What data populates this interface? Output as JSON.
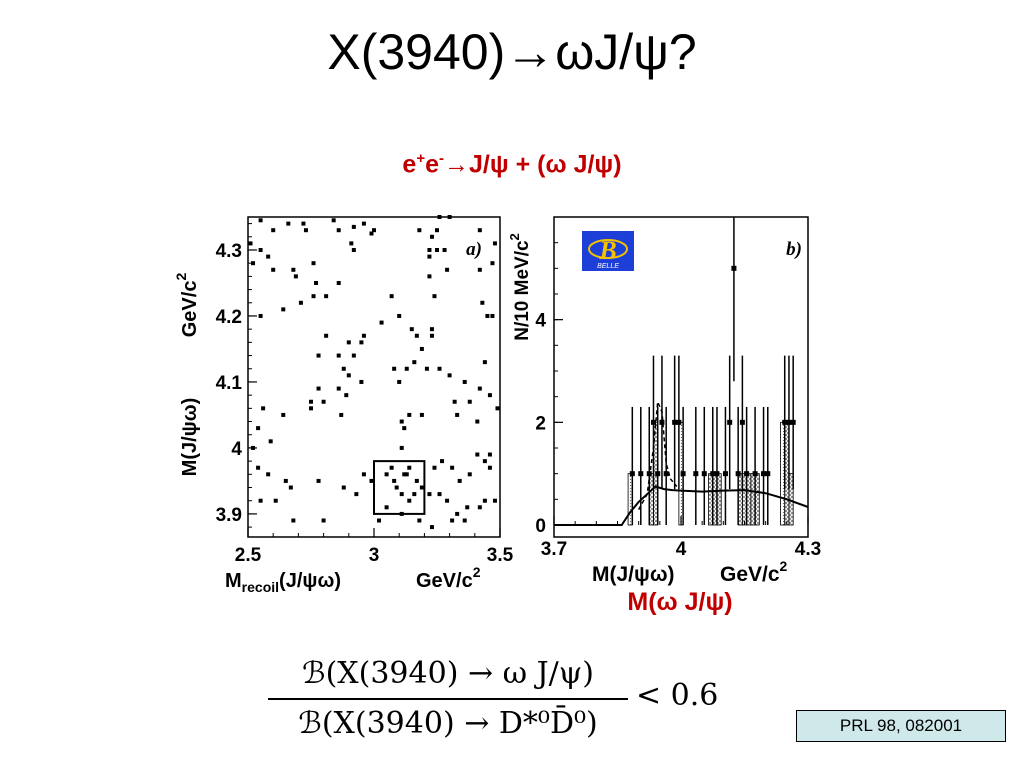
{
  "slide": {
    "title": "X(3940)→ωJ/ψ?",
    "subtitle_prefix": "e",
    "subtitle_sup1": "+",
    "subtitle_e2": "e",
    "subtitle_sup2": "-",
    "subtitle_rest": "→J/ψ  + (ω  J/ψ)",
    "bottom_label": "M(ω  J/ψ)",
    "reference": "PRL 98, 082001",
    "formula_numerator": "ℬ(X(3940) → ω J/ψ)",
    "formula_denominator": "ℬ(X(3940) → D*⁰D̄⁰)",
    "formula_rhs": "< 0.6"
  },
  "chart_data": [
    {
      "type": "scatter",
      "panel_label": "a)",
      "xlabel_main": "M",
      "xlabel_sub": "recoil",
      "xlabel_rest": "(J/ψω)",
      "xunit": "GeV/c",
      "xunit_sup": "2",
      "ylabel": "M(J/ψω)",
      "yunit": "GeV/c",
      "yunit_sup": "2",
      "xlim": [
        2.5,
        3.5
      ],
      "ylim": [
        3.865,
        4.35
      ],
      "xticks": [
        "2.5",
        "3",
        "3.5"
      ],
      "yticks": [
        "3.9",
        "4",
        "4.1",
        "4.2",
        "4.3"
      ],
      "signal_box": {
        "x": [
          3.0,
          3.2
        ],
        "y": [
          3.9,
          3.98
        ]
      },
      "points": [
        [
          2.55,
          4.345
        ],
        [
          2.55,
          4.3
        ],
        [
          2.58,
          4.29
        ],
        [
          2.6,
          4.33
        ],
        [
          2.66,
          4.34
        ],
        [
          2.72,
          4.34
        ],
        [
          2.84,
          4.345
        ],
        [
          2.92,
          4.335
        ],
        [
          2.96,
          4.34
        ],
        [
          2.99,
          4.325
        ],
        [
          2.51,
          4.31
        ],
        [
          2.52,
          4.28
        ],
        [
          2.73,
          4.33
        ],
        [
          2.86,
          4.33
        ],
        [
          3.0,
          4.33
        ],
        [
          2.6,
          4.27
        ],
        [
          2.68,
          4.27
        ],
        [
          2.76,
          4.28
        ],
        [
          2.77,
          4.25
        ],
        [
          2.81,
          4.23
        ],
        [
          2.86,
          4.25
        ],
        [
          2.92,
          4.3
        ],
        [
          2.86,
          4.14
        ],
        [
          2.9,
          4.16
        ],
        [
          2.91,
          4.31
        ],
        [
          2.55,
          4.2
        ],
        [
          2.64,
          4.21
        ],
        [
          2.69,
          4.26
        ],
        [
          2.76,
          4.23
        ],
        [
          2.71,
          4.22
        ],
        [
          2.78,
          4.14
        ],
        [
          2.81,
          4.17
        ],
        [
          2.88,
          4.12
        ],
        [
          2.92,
          4.14
        ],
        [
          2.95,
          4.16
        ],
        [
          2.96,
          4.17
        ],
        [
          3.1,
          4.2
        ],
        [
          3.03,
          4.19
        ],
        [
          3.07,
          4.23
        ],
        [
          3.15,
          4.18
        ],
        [
          3.23,
          4.18
        ],
        [
          3.26,
          4.12
        ],
        [
          3.3,
          4.11
        ],
        [
          3.32,
          4.07
        ],
        [
          3.36,
          4.1
        ],
        [
          3.42,
          4.09
        ],
        [
          3.44,
          4.13
        ],
        [
          3.45,
          4.2
        ],
        [
          3.47,
          4.2
        ],
        [
          3.49,
          4.06
        ],
        [
          3.46,
          4.08
        ],
        [
          3.38,
          4.07
        ],
        [
          3.13,
          4.12
        ],
        [
          3.08,
          4.12
        ],
        [
          3.1,
          4.1
        ],
        [
          3.14,
          4.05
        ],
        [
          3.11,
          4.04
        ],
        [
          3.12,
          4.03
        ],
        [
          3.16,
          4.13
        ],
        [
          3.17,
          4.17
        ],
        [
          3.19,
          4.15
        ],
        [
          3.23,
          4.17
        ],
        [
          3.22,
          4.26
        ],
        [
          3.24,
          4.23
        ],
        [
          3.22,
          4.29
        ],
        [
          3.25,
          4.3
        ],
        [
          3.23,
          4.32
        ],
        [
          3.28,
          4.3
        ],
        [
          3.29,
          4.27
        ],
        [
          3.25,
          4.33
        ],
        [
          3.26,
          4.35
        ],
        [
          3.3,
          4.35
        ],
        [
          3.42,
          4.27
        ],
        [
          3.43,
          4.22
        ],
        [
          3.42,
          4.33
        ],
        [
          3.48,
          4.31
        ],
        [
          3.47,
          4.28
        ],
        [
          3.22,
          4.3
        ],
        [
          3.18,
          4.33
        ],
        [
          2.75,
          4.06
        ],
        [
          2.78,
          4.09
        ],
        [
          2.86,
          4.09
        ],
        [
          2.89,
          4.08
        ],
        [
          2.87,
          4.05
        ],
        [
          2.8,
          4.07
        ],
        [
          2.75,
          4.07
        ],
        [
          2.64,
          4.05
        ],
        [
          2.56,
          4.06
        ],
        [
          2.54,
          4.03
        ],
        [
          2.59,
          4.01
        ],
        [
          2.52,
          4.0
        ],
        [
          2.54,
          3.97
        ],
        [
          2.58,
          3.96
        ],
        [
          2.55,
          3.92
        ],
        [
          2.65,
          3.95
        ],
        [
          2.67,
          3.94
        ],
        [
          2.78,
          3.95
        ],
        [
          2.8,
          3.89
        ],
        [
          2.88,
          3.94
        ],
        [
          2.93,
          3.93
        ],
        [
          2.96,
          3.96
        ],
        [
          2.99,
          3.95
        ],
        [
          3.02,
          3.89
        ],
        [
          3.05,
          3.96
        ],
        [
          3.08,
          3.95
        ],
        [
          3.09,
          3.94
        ],
        [
          3.11,
          3.93
        ],
        [
          3.13,
          3.96
        ],
        [
          3.14,
          3.97
        ],
        [
          3.16,
          3.93
        ],
        [
          3.19,
          3.94
        ],
        [
          3.22,
          3.93
        ],
        [
          3.24,
          3.97
        ],
        [
          3.27,
          3.98
        ],
        [
          3.31,
          3.97
        ],
        [
          3.29,
          3.92
        ],
        [
          3.33,
          3.9
        ],
        [
          3.36,
          3.89
        ],
        [
          3.38,
          3.96
        ],
        [
          3.41,
          3.99
        ],
        [
          3.44,
          3.98
        ],
        [
          3.46,
          3.97
        ],
        [
          3.44,
          3.92
        ],
        [
          3.48,
          3.92
        ],
        [
          3.37,
          3.91
        ],
        [
          3.31,
          3.89
        ],
        [
          3.23,
          3.88
        ],
        [
          3.05,
          3.91
        ],
        [
          3.11,
          3.9
        ],
        [
          3.18,
          3.89
        ],
        [
          3.12,
          3.96
        ],
        [
          3.14,
          3.92
        ],
        [
          3.17,
          3.95
        ],
        [
          3.07,
          3.97
        ],
        [
          3.26,
          3.93
        ],
        [
          2.61,
          3.92
        ],
        [
          2.68,
          3.89
        ],
        [
          3.42,
          3.91
        ],
        [
          3.34,
          3.95
        ],
        [
          3.41,
          4.04
        ],
        [
          3.46,
          3.99
        ],
        [
          3.21,
          4.12
        ],
        [
          3.11,
          4.0
        ],
        [
          3.19,
          4.05
        ],
        [
          3.33,
          4.05
        ],
        [
          2.9,
          4.11
        ],
        [
          2.95,
          4.1
        ]
      ]
    },
    {
      "type": "bar",
      "panel_label": "b)",
      "xlabel": "M(J/ψω)",
      "xunit": "GeV/c",
      "xunit_sup": "2",
      "ylabel": "N/10 MeV/c",
      "ylabel_sup": "2",
      "xlim": [
        3.7,
        4.3
      ],
      "ylim": [
        0,
        6
      ],
      "xticks": [
        "3.7",
        "4",
        "4.3"
      ],
      "yticks": [
        "0",
        "2",
        "4"
      ],
      "logo_text": "BELLE",
      "data_points": [
        {
          "x": 3.885,
          "y": 1,
          "err": [
            1,
            2.3
          ]
        },
        {
          "x": 3.905,
          "y": 1,
          "err": [
            1,
            2.3
          ]
        },
        {
          "x": 3.925,
          "y": 1,
          "err": [
            1,
            2.3
          ]
        },
        {
          "x": 3.935,
          "y": 2,
          "err": [
            1.3,
            3.3
          ]
        },
        {
          "x": 3.945,
          "y": 1,
          "err": [
            1,
            2.3
          ]
        },
        {
          "x": 3.955,
          "y": 2,
          "err": [
            1.3,
            3.3
          ]
        },
        {
          "x": 3.965,
          "y": 1,
          "err": [
            1,
            2.3
          ]
        },
        {
          "x": 3.985,
          "y": 2,
          "err": [
            1.3,
            3.3
          ]
        },
        {
          "x": 3.995,
          "y": 2,
          "err": [
            1.3,
            3.3
          ]
        },
        {
          "x": 4.005,
          "y": 1,
          "err": [
            1,
            2.3
          ]
        },
        {
          "x": 4.035,
          "y": 1,
          "err": [
            1,
            2.3
          ]
        },
        {
          "x": 4.055,
          "y": 1,
          "err": [
            1,
            2.3
          ]
        },
        {
          "x": 4.075,
          "y": 1,
          "err": [
            1,
            2.3
          ]
        },
        {
          "x": 4.085,
          "y": 1,
          "err": [
            1,
            2.3
          ]
        },
        {
          "x": 4.105,
          "y": 1,
          "err": [
            1,
            2.3
          ]
        },
        {
          "x": 4.115,
          "y": 2,
          "err": [
            1.3,
            3.3
          ]
        },
        {
          "x": 4.125,
          "y": 5,
          "err": [
            2.2,
            6.0
          ]
        },
        {
          "x": 4.135,
          "y": 1,
          "err": [
            1,
            2.3
          ]
        },
        {
          "x": 4.145,
          "y": 2,
          "err": [
            1.3,
            3.3
          ]
        },
        {
          "x": 4.155,
          "y": 1,
          "err": [
            1,
            2.3
          ]
        },
        {
          "x": 4.175,
          "y": 1,
          "err": [
            1,
            2.3
          ]
        },
        {
          "x": 4.195,
          "y": 1,
          "err": [
            1,
            2.3
          ]
        },
        {
          "x": 4.205,
          "y": 1,
          "err": [
            1,
            2.3
          ]
        },
        {
          "x": 4.245,
          "y": 2,
          "err": [
            1.3,
            3.3
          ]
        },
        {
          "x": 4.255,
          "y": 2,
          "err": [
            1.3,
            3.3
          ]
        },
        {
          "x": 4.265,
          "y": 2,
          "err": [
            1.3,
            3.3
          ]
        }
      ],
      "sideband_bins": [
        {
          "x": 3.88,
          "y": 1,
          "fill": "dots"
        },
        {
          "x": 3.93,
          "y": 1,
          "fill": "hatch"
        },
        {
          "x": 3.94,
          "y": 2,
          "fill": "hatch"
        },
        {
          "x": 4.0,
          "y": 2,
          "fill": "dots"
        },
        {
          "x": 4.07,
          "y": 1,
          "fill": "hatch"
        },
        {
          "x": 4.08,
          "y": 1,
          "fill": "hatch"
        },
        {
          "x": 4.09,
          "y": 1,
          "fill": "hatch"
        },
        {
          "x": 4.14,
          "y": 1,
          "fill": "hatch"
        },
        {
          "x": 4.15,
          "y": 1,
          "fill": "hatch"
        },
        {
          "x": 4.16,
          "y": 1,
          "fill": "hatch"
        },
        {
          "x": 4.17,
          "y": 1,
          "fill": "hatch"
        },
        {
          "x": 4.18,
          "y": 1,
          "fill": "hatch"
        },
        {
          "x": 4.24,
          "y": 2,
          "fill": "dots"
        },
        {
          "x": 4.25,
          "y": 2,
          "fill": "hatch"
        },
        {
          "x": 4.26,
          "y": 1,
          "fill": "hatch"
        }
      ],
      "fit_curve": [
        [
          3.7,
          0
        ],
        [
          3.86,
          0
        ],
        [
          3.88,
          0.25
        ],
        [
          3.9,
          0.45
        ],
        [
          3.92,
          0.6
        ],
        [
          3.94,
          0.75
        ],
        [
          3.96,
          0.7
        ],
        [
          3.98,
          0.68
        ],
        [
          4.0,
          0.67
        ],
        [
          4.05,
          0.65
        ],
        [
          4.1,
          0.67
        ],
        [
          4.15,
          0.68
        ],
        [
          4.2,
          0.62
        ],
        [
          4.25,
          0.5
        ],
        [
          4.3,
          0.35
        ]
      ],
      "dashed_curve": [
        [
          3.9,
          0.3
        ],
        [
          3.92,
          0.6
        ],
        [
          3.935,
          1.5
        ],
        [
          3.945,
          2.4
        ],
        [
          3.955,
          2.2
        ],
        [
          3.965,
          1.2
        ],
        [
          3.975,
          0.9
        ],
        [
          3.99,
          0.75
        ]
      ]
    }
  ]
}
